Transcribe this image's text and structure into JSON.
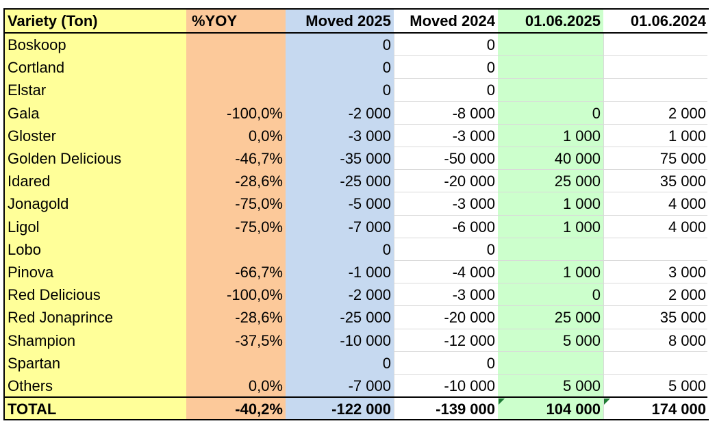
{
  "table": {
    "headers": {
      "variety": "Variety (Ton)",
      "yoy": "%YOY",
      "moved_2025": "Moved 2025",
      "moved_2024": "Moved 2024",
      "date_2025": "01.06.2025",
      "date_2024": "01.06.2024"
    },
    "rows": [
      {
        "variety": "Boskoop",
        "yoy": "",
        "moved_2025": "0",
        "moved_2024": "0",
        "date_2025": "",
        "date_2024": ""
      },
      {
        "variety": "Cortland",
        "yoy": "",
        "moved_2025": "0",
        "moved_2024": "0",
        "date_2025": "",
        "date_2024": ""
      },
      {
        "variety": "Elstar",
        "yoy": "",
        "moved_2025": "0",
        "moved_2024": "0",
        "date_2025": "",
        "date_2024": ""
      },
      {
        "variety": "Gala",
        "yoy": "-100,0%",
        "moved_2025": "-2 000",
        "moved_2024": "-8 000",
        "date_2025": "0",
        "date_2024": "2 000"
      },
      {
        "variety": "Gloster",
        "yoy": "0,0%",
        "moved_2025": "-3 000",
        "moved_2024": "-3 000",
        "date_2025": "1 000",
        "date_2024": "1 000"
      },
      {
        "variety": "Golden Delicious",
        "yoy": "-46,7%",
        "moved_2025": "-35 000",
        "moved_2024": "-50 000",
        "date_2025": "40 000",
        "date_2024": "75 000"
      },
      {
        "variety": "Idared",
        "yoy": "-28,6%",
        "moved_2025": "-25 000",
        "moved_2024": "-20 000",
        "date_2025": "25 000",
        "date_2024": "35 000"
      },
      {
        "variety": "Jonagold",
        "yoy": "-75,0%",
        "moved_2025": "-5 000",
        "moved_2024": "-3 000",
        "date_2025": "1 000",
        "date_2024": "4 000"
      },
      {
        "variety": "Ligol",
        "yoy": "-75,0%",
        "moved_2025": "-7 000",
        "moved_2024": "-6 000",
        "date_2025": "1 000",
        "date_2024": "4 000"
      },
      {
        "variety": "Lobo",
        "yoy": "",
        "moved_2025": "0",
        "moved_2024": "0",
        "date_2025": "",
        "date_2024": ""
      },
      {
        "variety": "Pinova",
        "yoy": "-66,7%",
        "moved_2025": "-1 000",
        "moved_2024": "-4 000",
        "date_2025": "1 000",
        "date_2024": "3 000"
      },
      {
        "variety": "Red Delicious",
        "yoy": "-100,0%",
        "moved_2025": "-2 000",
        "moved_2024": "-3 000",
        "date_2025": "0",
        "date_2024": "2 000"
      },
      {
        "variety": "Red Jonaprince",
        "yoy": "-28,6%",
        "moved_2025": "-25 000",
        "moved_2024": "-20 000",
        "date_2025": "25 000",
        "date_2024": "35 000"
      },
      {
        "variety": "Shampion",
        "yoy": "-37,5%",
        "moved_2025": "-10 000",
        "moved_2024": "-12 000",
        "date_2025": "5 000",
        "date_2024": "8 000"
      },
      {
        "variety": "Spartan",
        "yoy": "",
        "moved_2025": "0",
        "moved_2024": "0",
        "date_2025": "",
        "date_2024": ""
      },
      {
        "variety": "Others",
        "yoy": "0,0%",
        "moved_2025": "-7 000",
        "moved_2024": "-10 000",
        "date_2025": "5 000",
        "date_2024": "5 000"
      }
    ],
    "total": {
      "variety": "TOTAL",
      "yoy": "-40,2%",
      "moved_2025": "-122 000",
      "moved_2024": "-139 000",
      "date_2025": "104 000",
      "date_2024": "174 000"
    }
  },
  "colors": {
    "variety_col": "#ffff99",
    "yoy_col": "#fcc99a",
    "moved_2025_col": "#c6d9f0",
    "date_2025_col": "#ccffcc",
    "cell_flag": "#1e7b34"
  }
}
